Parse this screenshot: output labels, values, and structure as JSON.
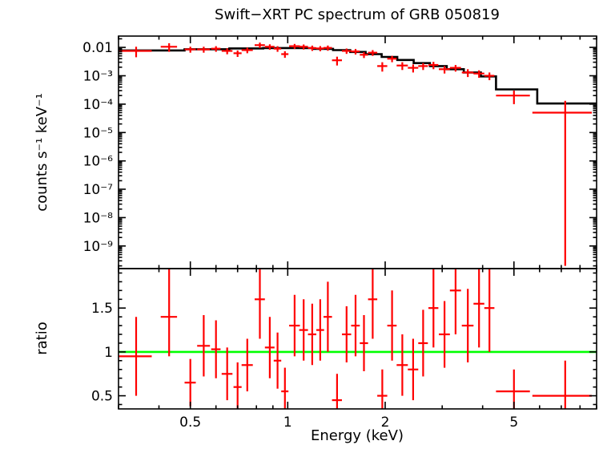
{
  "figure": {
    "title": "Swift−XRT PC spectrum of GRB 050819",
    "x_axis_label": "Energy (keV)",
    "top_y_axis_label": "counts s⁻¹ keV⁻¹",
    "bottom_y_axis_label": "ratio"
  },
  "chart_data": {
    "type": "scatter",
    "title": "Swift−XRT PC spectrum of GRB 050819",
    "xlabel": "Energy (keV)",
    "xscale": "log",
    "xlim": [
      0.3,
      9.0
    ],
    "xticks": [
      {
        "v": 0.5,
        "label": "0.5"
      },
      {
        "v": 1,
        "label": "1"
      },
      {
        "v": 2,
        "label": "2"
      },
      {
        "v": 5,
        "label": "5"
      }
    ],
    "colors": {
      "data": "#ff0000",
      "model": "#000000",
      "unity": "#00ff00",
      "frame": "#000000"
    },
    "top": {
      "ylabel": "counts s⁻¹ keV⁻¹",
      "yscale": "log",
      "ylim": [
        1.6e-10,
        0.025
      ],
      "yticks": [
        {
          "v": 0.01,
          "label": "0.01"
        },
        {
          "v": 0.001,
          "label": "10⁻³"
        },
        {
          "v": 0.0001,
          "label": "10⁻⁴"
        },
        {
          "v": 1e-05,
          "label": "10⁻⁵"
        },
        {
          "v": 1e-06,
          "label": "10⁻⁶"
        },
        {
          "v": 1e-07,
          "label": "10⁻⁷"
        },
        {
          "v": 1e-08,
          "label": "10⁻⁸"
        },
        {
          "v": 1e-09,
          "label": "10⁻⁹"
        }
      ],
      "series": [
        {
          "name": "data",
          "kind": "errorbar",
          "color": "#ff0000",
          "columns": [
            "x",
            "xerr",
            "y",
            "ylo",
            "yhi"
          ],
          "points": [
            [
              0.34,
              0.04,
              0.0075,
              0.0045,
              0.0105
            ],
            [
              0.43,
              0.025,
              0.0105,
              0.007,
              0.014
            ],
            [
              0.5,
              0.02,
              0.0085,
              0.0065,
              0.0105
            ],
            [
              0.55,
              0.025,
              0.0085,
              0.0065,
              0.0105
            ],
            [
              0.6,
              0.02,
              0.009,
              0.007,
              0.011
            ],
            [
              0.65,
              0.025,
              0.0075,
              0.0057,
              0.0093
            ],
            [
              0.7,
              0.02,
              0.0062,
              0.0046,
              0.0078
            ],
            [
              0.75,
              0.03,
              0.008,
              0.0062,
              0.0098
            ],
            [
              0.82,
              0.03,
              0.012,
              0.0095,
              0.0148
            ],
            [
              0.88,
              0.03,
              0.0105,
              0.0082,
              0.0128
            ],
            [
              0.93,
              0.025,
              0.009,
              0.007,
              0.011
            ],
            [
              0.98,
              0.025,
              0.0058,
              0.0043,
              0.0073
            ],
            [
              1.05,
              0.04,
              0.011,
              0.0088,
              0.0132
            ],
            [
              1.12,
              0.035,
              0.0105,
              0.0084,
              0.0126
            ],
            [
              1.19,
              0.035,
              0.0095,
              0.0075,
              0.0115
            ],
            [
              1.26,
              0.035,
              0.0092,
              0.0073,
              0.0111
            ],
            [
              1.33,
              0.04,
              0.0096,
              0.0076,
              0.0116
            ],
            [
              1.42,
              0.05,
              0.0035,
              0.0023,
              0.0047
            ],
            [
              1.52,
              0.05,
              0.0075,
              0.0059,
              0.0091
            ],
            [
              1.62,
              0.05,
              0.0072,
              0.0056,
              0.0088
            ],
            [
              1.72,
              0.05,
              0.0055,
              0.0042,
              0.0068
            ],
            [
              1.83,
              0.06,
              0.0065,
              0.005,
              0.008
            ],
            [
              1.96,
              0.07,
              0.0022,
              0.0014,
              0.003
            ],
            [
              2.1,
              0.07,
              0.004,
              0.003,
              0.005
            ],
            [
              2.26,
              0.09,
              0.0023,
              0.0016,
              0.003
            ],
            [
              2.44,
              0.09,
              0.0019,
              0.0013,
              0.0025
            ],
            [
              2.62,
              0.09,
              0.0022,
              0.0016,
              0.0028
            ],
            [
              2.82,
              0.1,
              0.0024,
              0.0017,
              0.0031
            ],
            [
              3.05,
              0.12,
              0.0017,
              0.0012,
              0.0022
            ],
            [
              3.3,
              0.13,
              0.0019,
              0.0014,
              0.0024
            ],
            [
              3.6,
              0.15,
              0.0013,
              0.0009,
              0.0017
            ],
            [
              3.9,
              0.15,
              0.0012,
              0.00085,
              0.00155
            ],
            [
              4.2,
              0.15,
              0.001,
              0.0007,
              0.0013
            ],
            [
              5.0,
              0.6,
              0.0002,
              0.0001,
              0.0003
            ],
            [
              7.2,
              1.5,
              5e-05,
              2e-10,
              0.00013
            ]
          ]
        },
        {
          "name": "model",
          "kind": "step",
          "color": "#000000",
          "columns": [
            "x1",
            "x2",
            "y"
          ],
          "steps": [
            [
              0.3,
              0.48,
              0.0078
            ],
            [
              0.48,
              0.66,
              0.0086
            ],
            [
              0.66,
              0.84,
              0.0092
            ],
            [
              0.84,
              1.02,
              0.0095
            ],
            [
              1.02,
              1.2,
              0.0094
            ],
            [
              1.2,
              1.38,
              0.0089
            ],
            [
              1.38,
              1.56,
              0.008
            ],
            [
              1.56,
              1.74,
              0.0069
            ],
            [
              1.74,
              1.95,
              0.0058
            ],
            [
              1.95,
              2.18,
              0.0046
            ],
            [
              2.18,
              2.45,
              0.0036
            ],
            [
              2.45,
              2.75,
              0.0028
            ],
            [
              2.75,
              3.1,
              0.0022
            ],
            [
              3.1,
              3.5,
              0.0017
            ],
            [
              3.5,
              3.95,
              0.0013
            ],
            [
              3.95,
              4.4,
              0.00095
            ],
            [
              4.4,
              5.9,
              0.00033
            ],
            [
              5.9,
              9.0,
              0.000105
            ]
          ]
        }
      ]
    },
    "bottom": {
      "ylabel": "ratio",
      "yscale": "linear",
      "ylim": [
        0.35,
        1.95
      ],
      "yticks": [
        {
          "v": 0.5,
          "label": "0.5"
        },
        {
          "v": 1,
          "label": "1"
        },
        {
          "v": 1.5,
          "label": "1.5"
        }
      ],
      "yticks_minor": [
        0.4,
        0.6,
        0.7,
        0.8,
        0.9,
        1.1,
        1.2,
        1.3,
        1.4,
        1.6,
        1.7,
        1.8,
        1.9
      ],
      "unity_line": {
        "y": 1,
        "color": "#00ff00"
      },
      "series": [
        {
          "name": "ratio",
          "kind": "errorbar",
          "color": "#ff0000",
          "columns": [
            "x",
            "xerr",
            "ratio",
            "rlo",
            "rhi"
          ],
          "points": [
            [
              0.34,
              0.04,
              0.95,
              0.5,
              1.4
            ],
            [
              0.43,
              0.025,
              1.4,
              0.95,
              1.95
            ],
            [
              0.5,
              0.02,
              0.65,
              0.38,
              0.92
            ],
            [
              0.55,
              0.025,
              1.07,
              0.72,
              1.42
            ],
            [
              0.6,
              0.02,
              1.03,
              0.7,
              1.36
            ],
            [
              0.65,
              0.025,
              0.75,
              0.45,
              1.05
            ],
            [
              0.7,
              0.02,
              0.6,
              0.32,
              0.88
            ],
            [
              0.75,
              0.03,
              0.85,
              0.55,
              1.15
            ],
            [
              0.82,
              0.03,
              1.6,
              1.15,
              2.05
            ],
            [
              0.88,
              0.03,
              1.05,
              0.7,
              1.4
            ],
            [
              0.93,
              0.025,
              0.9,
              0.58,
              1.22
            ],
            [
              0.98,
              0.025,
              0.55,
              0.28,
              0.82
            ],
            [
              1.05,
              0.04,
              1.3,
              0.95,
              1.65
            ],
            [
              1.12,
              0.035,
              1.25,
              0.9,
              1.6
            ],
            [
              1.19,
              0.035,
              1.2,
              0.85,
              1.55
            ],
            [
              1.26,
              0.035,
              1.25,
              0.9,
              1.6
            ],
            [
              1.33,
              0.04,
              1.4,
              1.0,
              1.8
            ],
            [
              1.42,
              0.05,
              0.45,
              0.15,
              0.75
            ],
            [
              1.52,
              0.05,
              1.2,
              0.88,
              1.52
            ],
            [
              1.62,
              0.05,
              1.3,
              0.95,
              1.65
            ],
            [
              1.72,
              0.05,
              1.1,
              0.78,
              1.42
            ],
            [
              1.83,
              0.06,
              1.6,
              1.15,
              2.05
            ],
            [
              1.96,
              0.07,
              0.5,
              0.2,
              0.8
            ],
            [
              2.1,
              0.07,
              1.3,
              0.9,
              1.7
            ],
            [
              2.26,
              0.09,
              0.85,
              0.5,
              1.2
            ],
            [
              2.44,
              0.09,
              0.8,
              0.45,
              1.15
            ],
            [
              2.62,
              0.09,
              1.1,
              0.72,
              1.48
            ],
            [
              2.82,
              0.1,
              1.5,
              1.05,
              1.95
            ],
            [
              3.05,
              0.12,
              1.2,
              0.82,
              1.58
            ],
            [
              3.3,
              0.13,
              1.7,
              1.2,
              2.2
            ],
            [
              3.6,
              0.15,
              1.3,
              0.88,
              1.72
            ],
            [
              3.9,
              0.15,
              1.55,
              1.05,
              2.05
            ],
            [
              4.2,
              0.15,
              1.5,
              1.0,
              2.0
            ],
            [
              5.0,
              0.6,
              0.55,
              0.3,
              0.8
            ],
            [
              7.2,
              1.5,
              0.5,
              0.1,
              0.9
            ]
          ]
        }
      ]
    }
  }
}
